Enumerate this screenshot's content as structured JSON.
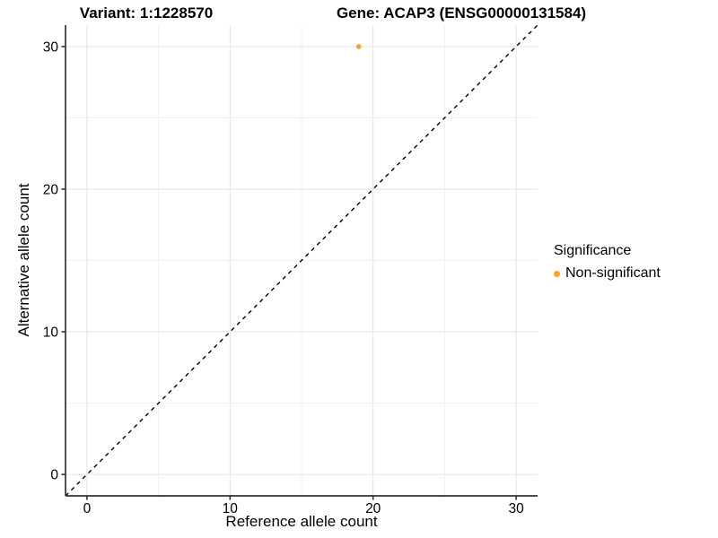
{
  "figure": {
    "title_left": "Variant: 1:1228570",
    "title_right": "Gene: ACAP3 (ENSG00000131584)"
  },
  "axes": {
    "x_label": "Reference allele count",
    "y_label": "Alternative allele count"
  },
  "legend": {
    "title": "Significance",
    "items": [
      {
        "label": "Non-significant",
        "color": "#FFA320"
      }
    ]
  },
  "colors": {
    "background": "#FFFFFF",
    "axis_line": "#333333",
    "tick_text": "#000000",
    "grid_major": "#E3E3E3",
    "grid_minor": "#F0F0F0",
    "identity_line": "#000000",
    "point": "#FFA320"
  },
  "chart_data": {
    "type": "scatter",
    "title": "Variant: 1:1228570 | Gene: ACAP3 (ENSG00000131584)",
    "xlabel": "Reference allele count",
    "ylabel": "Alternative allele count",
    "xlim": [
      -1.5,
      31.5
    ],
    "ylim": [
      -1.5,
      31.5
    ],
    "x_ticks": [
      0,
      10,
      20,
      30
    ],
    "y_ticks": [
      0,
      10,
      20,
      30
    ],
    "x_minor_ticks": [
      5,
      15,
      25
    ],
    "y_minor_ticks": [
      5,
      15,
      25
    ],
    "grid": true,
    "legend_position": "right",
    "identity_line": {
      "slope": 1,
      "intercept": 0,
      "style": "dashed",
      "color": "#000000"
    },
    "series": [
      {
        "name": "Non-significant",
        "color": "#FFA320",
        "points": [
          {
            "x": 19,
            "y": 30
          }
        ]
      }
    ]
  }
}
